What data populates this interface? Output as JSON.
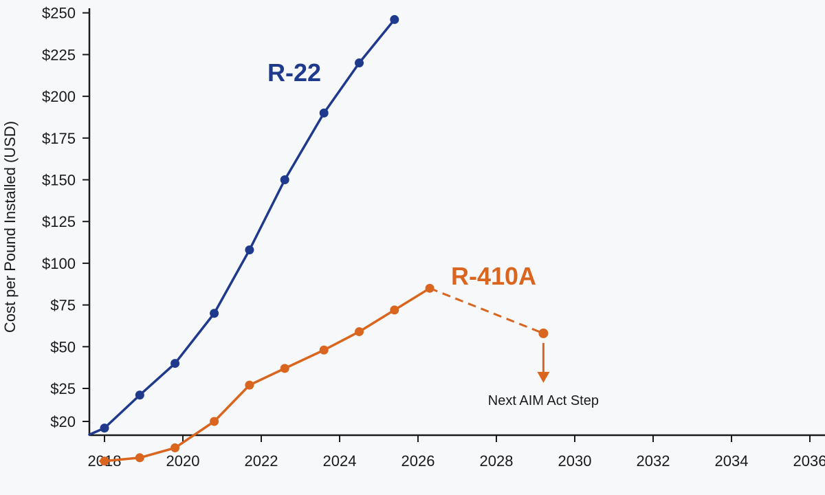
{
  "chart_data": {
    "type": "line",
    "title": "",
    "xlabel": "",
    "ylabel": "Cost per Pound Installed (USD)",
    "y_tick_labels": [
      "$20",
      "$25",
      "$50",
      "$75",
      "$100",
      "$125",
      "$150",
      "$175",
      "$200",
      "$225",
      "$250"
    ],
    "x_tick_labels": [
      "2018",
      "2020",
      "2022",
      "2024",
      "2026",
      "2028",
      "2030",
      "2032",
      "2034",
      "2036"
    ],
    "xlim": [
      2017.6,
      2035.8
    ],
    "grid": false,
    "series": [
      {
        "name": "R-22",
        "color": "#1f3a8c",
        "points": [
          {
            "x": 2018.0,
            "y": 19
          },
          {
            "x": 2018.9,
            "y": 24
          },
          {
            "x": 2019.8,
            "y": 40
          },
          {
            "x": 2020.8,
            "y": 70
          },
          {
            "x": 2021.7,
            "y": 108
          },
          {
            "x": 2022.6,
            "y": 150
          },
          {
            "x": 2023.6,
            "y": 190
          },
          {
            "x": 2024.5,
            "y": 220
          },
          {
            "x": 2025.4,
            "y": 246
          }
        ]
      },
      {
        "name": "R-410A",
        "color": "#d9651e",
        "points": [
          {
            "x": 2018.0,
            "y": 14
          },
          {
            "x": 2018.9,
            "y": 14.5
          },
          {
            "x": 2019.8,
            "y": 16
          },
          {
            "x": 2020.8,
            "y": 20
          },
          {
            "x": 2021.7,
            "y": 27
          },
          {
            "x": 2022.6,
            "y": 37
          },
          {
            "x": 2023.6,
            "y": 48
          },
          {
            "x": 2024.5,
            "y": 59
          },
          {
            "x": 2025.4,
            "y": 72
          },
          {
            "x": 2026.3,
            "y": 85
          }
        ],
        "projection": [
          {
            "x": 2026.3,
            "y": 85
          },
          {
            "x": 2029.2,
            "y": 58
          }
        ]
      }
    ],
    "annotations": [
      {
        "text": "Next AIM Act Step",
        "x": 2029.2,
        "y": 58
      }
    ]
  }
}
